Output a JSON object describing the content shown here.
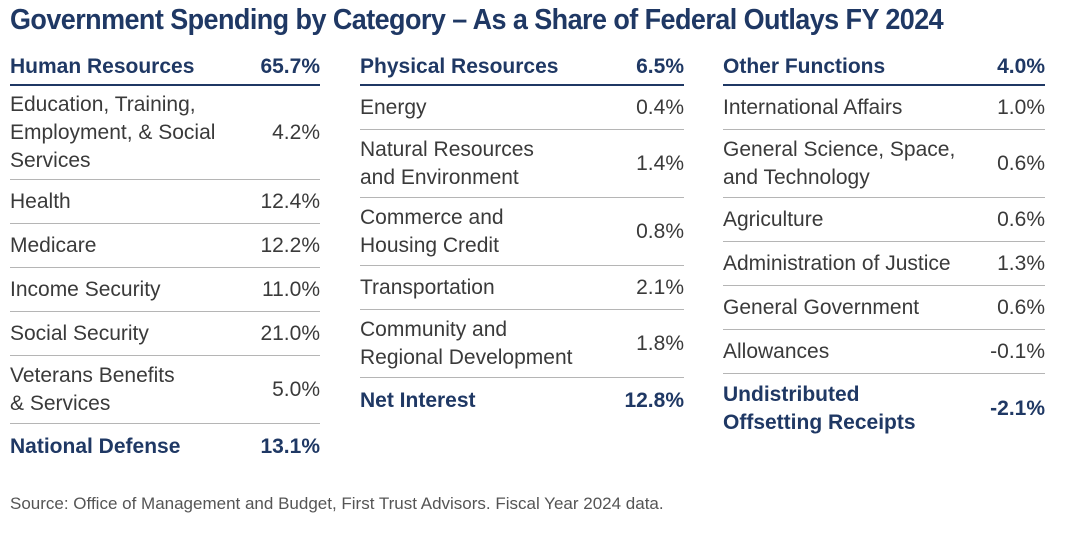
{
  "title": "Government Spending by Category – As a Share of Federal Outlays FY 2024",
  "columns": [
    {
      "header": {
        "label": "Human Resources",
        "value": "65.7%"
      },
      "rows": [
        {
          "label": "Education, Training,\nEmployment, & Social\nServices",
          "value": "4.2%"
        },
        {
          "label": "Health",
          "value": "12.4%"
        },
        {
          "label": "Medicare",
          "value": "12.2%"
        },
        {
          "label": "Income Security",
          "value": "11.0%"
        },
        {
          "label": "Social Security",
          "value": "21.0%"
        },
        {
          "label": "Veterans Benefits\n& Services",
          "value": "5.0%"
        }
      ],
      "total": {
        "label": "National Defense",
        "value": "13.1%"
      }
    },
    {
      "header": {
        "label": "Physical Resources",
        "value": "6.5%"
      },
      "rows": [
        {
          "label": "Energy",
          "value": "0.4%"
        },
        {
          "label": "Natural Resources\nand Environment",
          "value": "1.4%"
        },
        {
          "label": "Commerce and\nHousing Credit",
          "value": "0.8%"
        },
        {
          "label": "Transportation",
          "value": "2.1%"
        },
        {
          "label": "Community and\nRegional Development",
          "value": "1.8%"
        }
      ],
      "total": {
        "label": "Net Interest",
        "value": "12.8%"
      }
    },
    {
      "header": {
        "label": "Other Functions",
        "value": "4.0%"
      },
      "rows": [
        {
          "label": "International Affairs",
          "value": "1.0%"
        },
        {
          "label": "General Science, Space,\nand Technology",
          "value": "0.6%"
        },
        {
          "label": "Agriculture",
          "value": "0.6%"
        },
        {
          "label": "Administration of Justice",
          "value": "1.3%"
        },
        {
          "label": "General Government",
          "value": "0.6%"
        },
        {
          "label": "Allowances",
          "value": "-0.1%"
        }
      ],
      "total": {
        "label": "Undistributed\nOffsetting Receipts",
        "value": "-2.1%"
      }
    }
  ],
  "source": "Source: Office of Management and Budget, First Trust Advisors.  Fiscal Year 2024 data."
}
